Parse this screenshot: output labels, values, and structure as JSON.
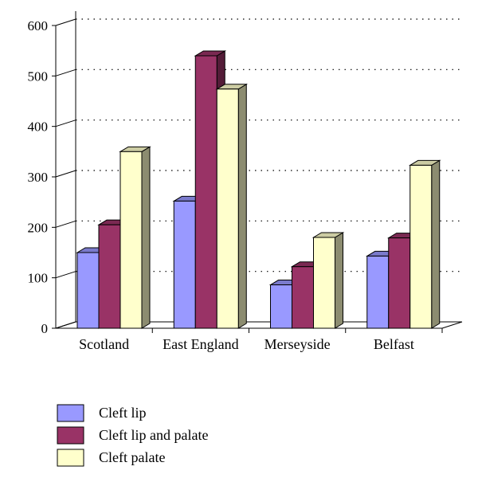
{
  "chart_data": {
    "type": "bar",
    "style": "3d-clustered-column",
    "title": "",
    "xlabel": "",
    "ylabel": "",
    "ylim": [
      0,
      600
    ],
    "yticks": [
      "0",
      "100",
      "200",
      "300",
      "400",
      "500",
      "600"
    ],
    "categories": [
      "Scotland",
      "East England",
      "Merseyside",
      "Belfast"
    ],
    "series": [
      {
        "name": "Cleft lip",
        "values": [
          150,
          252,
          86,
          143
        ],
        "color": "#9999ff"
      },
      {
        "name": "Cleft lip and palate",
        "values": [
          205,
          540,
          122,
          179
        ],
        "color": "#993366"
      },
      {
        "name": "Cleft palate",
        "values": [
          350,
          474,
          180,
          323
        ],
        "color": "#ffffcc"
      }
    ],
    "grid": "horizontal dotted",
    "legend": "bottom-left"
  }
}
